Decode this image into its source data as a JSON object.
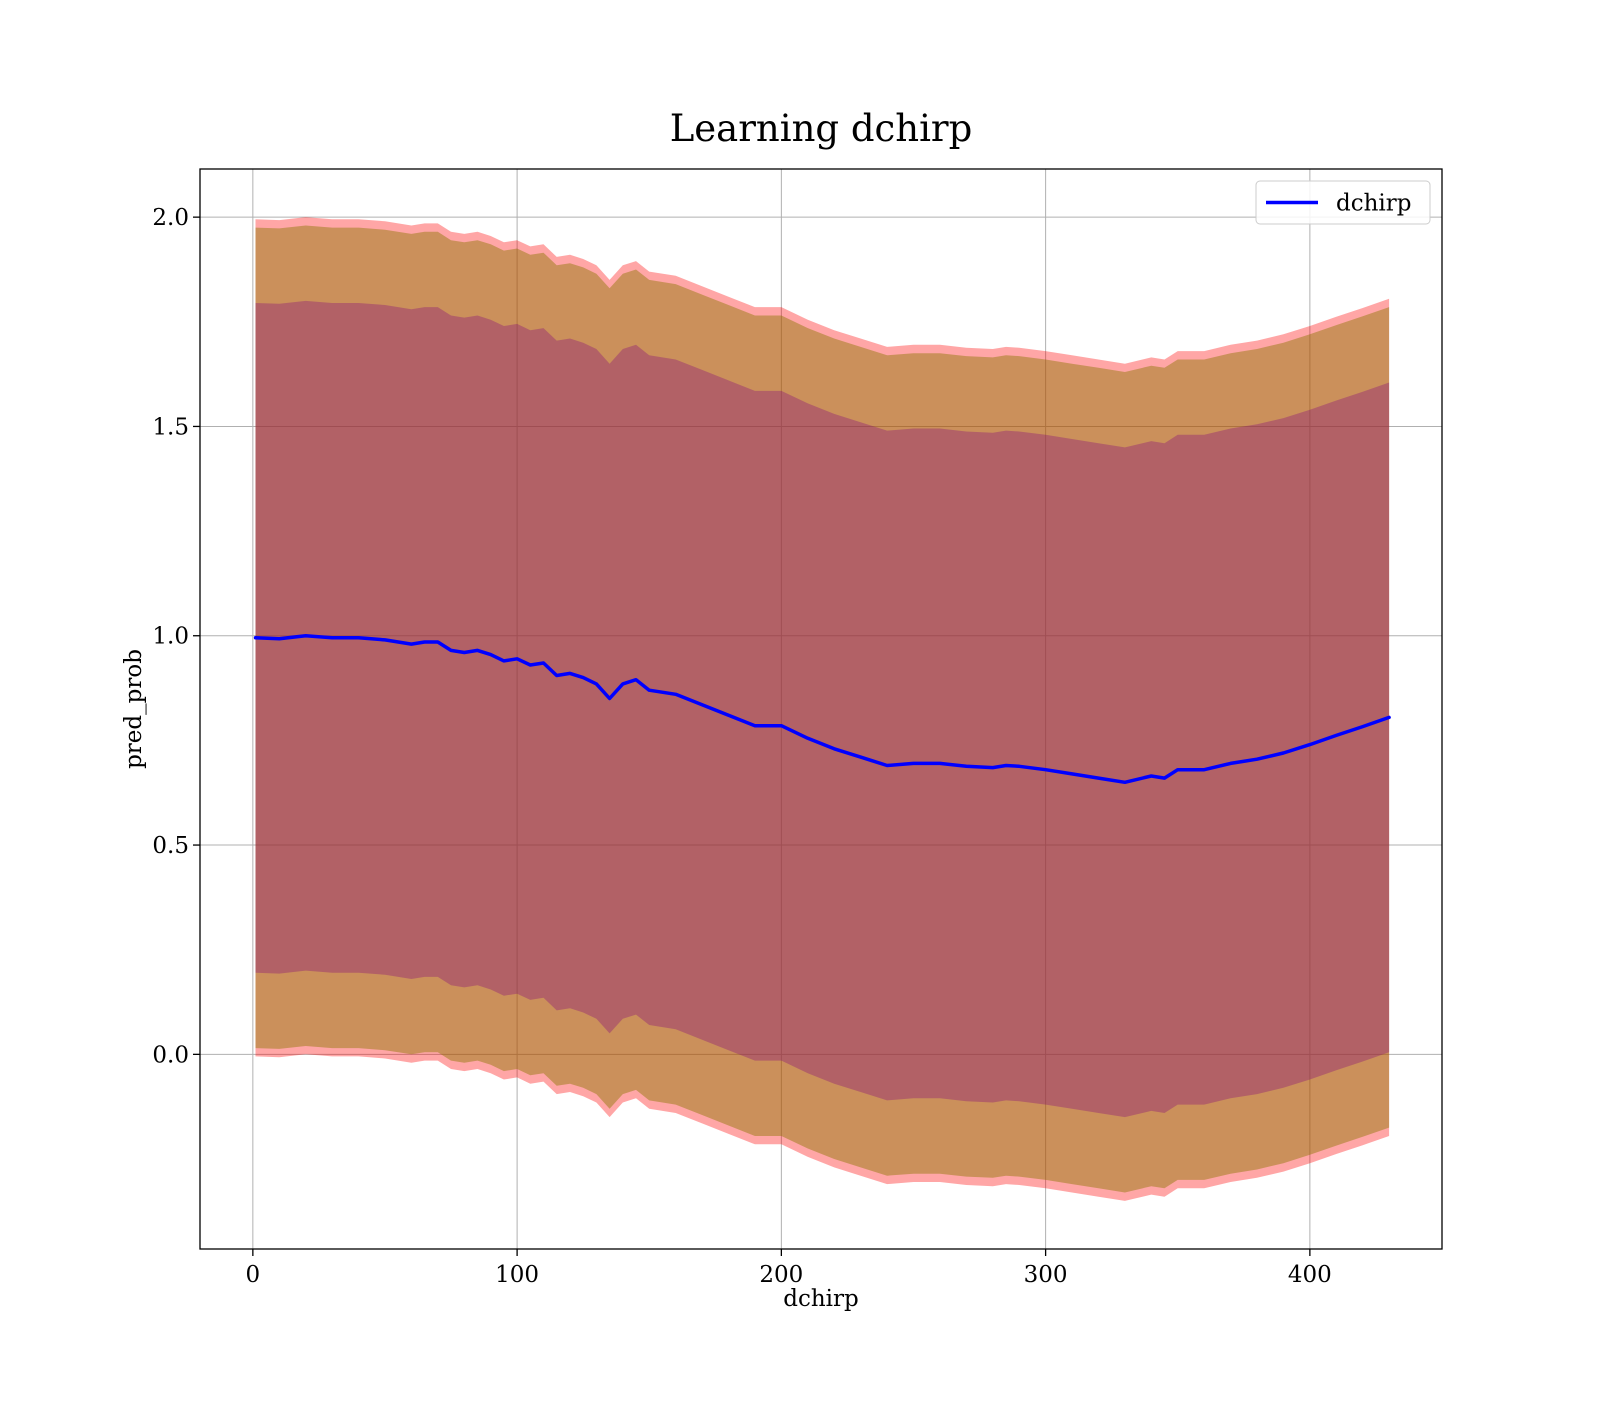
{
  "chart_data": {
    "type": "line",
    "title": "Learning dchirp",
    "xlabel": "dchirp",
    "ylabel": "pred_prob",
    "xlim": [
      -20,
      450
    ],
    "ylim": [
      -0.465,
      2.115
    ],
    "grid": true,
    "legend_position": "top-right",
    "x_ticks": [
      0,
      100,
      200,
      300,
      400
    ],
    "x_tick_labels": [
      "0",
      "100",
      "200",
      "300",
      "400"
    ],
    "y_ticks": [
      0.0,
      0.5,
      1.0,
      1.5,
      2.0
    ],
    "y_tick_labels": [
      "0.0",
      "0.5",
      "1.0",
      "1.5",
      "2.0"
    ],
    "series": [
      {
        "name": "dchirp",
        "color": "#0000ff",
        "x": [
          1,
          10,
          20,
          30,
          40,
          50,
          60,
          65,
          70,
          75,
          80,
          85,
          90,
          95,
          100,
          105,
          110,
          115,
          120,
          125,
          130,
          135,
          140,
          145,
          150,
          160,
          170,
          180,
          190,
          200,
          210,
          220,
          230,
          240,
          250,
          260,
          270,
          280,
          285,
          290,
          300,
          310,
          320,
          330,
          340,
          345,
          350,
          360,
          370,
          380,
          390,
          400,
          410,
          420,
          430
        ],
        "y": [
          0.995,
          0.993,
          1.0,
          0.995,
          0.995,
          0.99,
          0.98,
          0.985,
          0.985,
          0.965,
          0.96,
          0.965,
          0.955,
          0.94,
          0.945,
          0.93,
          0.935,
          0.905,
          0.91,
          0.9,
          0.885,
          0.85,
          0.885,
          0.895,
          0.87,
          0.86,
          0.835,
          0.81,
          0.785,
          0.785,
          0.755,
          0.73,
          0.71,
          0.69,
          0.695,
          0.695,
          0.688,
          0.685,
          0.69,
          0.688,
          0.68,
          0.67,
          0.66,
          0.65,
          0.665,
          0.66,
          0.68,
          0.68,
          0.695,
          0.705,
          0.72,
          0.74,
          0.762,
          0.783,
          0.805
        ]
      }
    ],
    "bands": [
      {
        "color": "#ff0000",
        "opacity": 0.35,
        "lower_offset": -1.0,
        "upper_offset": 1.0
      },
      {
        "color": "#8b7500",
        "opacity": 0.45,
        "lower_offset": -0.98,
        "upper_offset": 0.98
      },
      {
        "color": "#800080",
        "opacity": 0.32,
        "lower_offset": -0.8,
        "upper_offset": 0.8
      }
    ]
  }
}
